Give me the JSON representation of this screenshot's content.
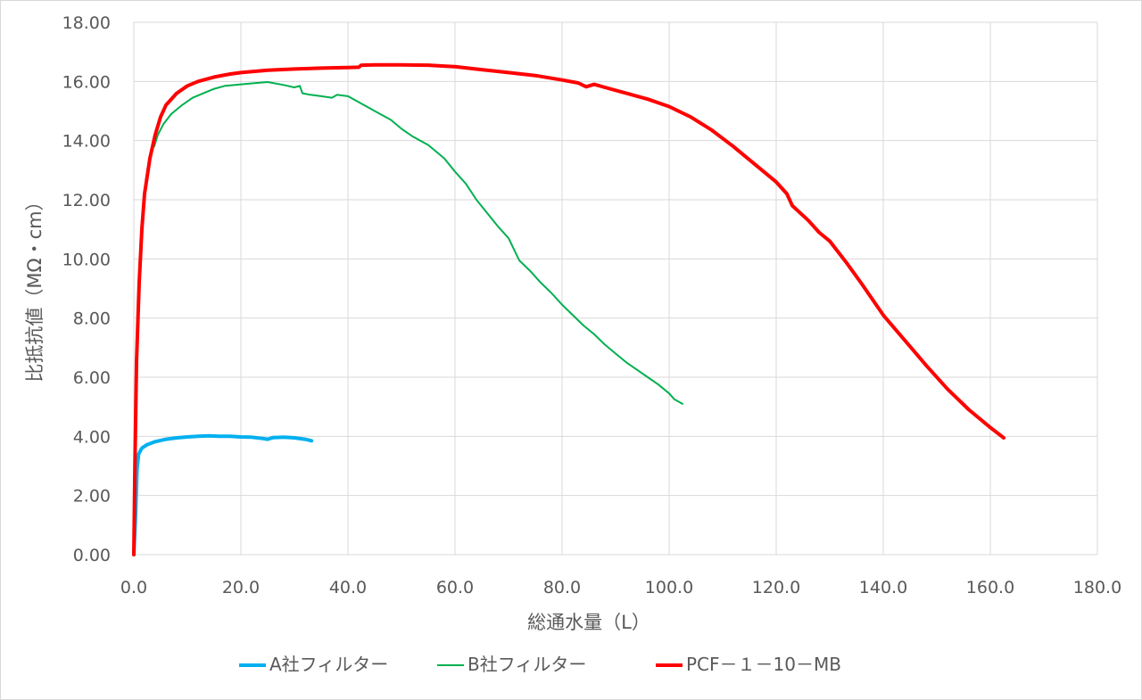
{
  "chart_data": {
    "type": "line",
    "title": "",
    "xlabel": "総通水量（L）",
    "ylabel": "比抵抗値（MΩ・cm）",
    "xlim": [
      0,
      180
    ],
    "ylim": [
      0,
      18
    ],
    "x_ticks": [
      "0.0",
      "20.0",
      "40.0",
      "60.0",
      "80.0",
      "100.0",
      "120.0",
      "140.0",
      "160.0",
      "180.0"
    ],
    "y_ticks": [
      "0.00",
      "2.00",
      "4.00",
      "6.00",
      "8.00",
      "10.00",
      "12.00",
      "14.00",
      "16.00",
      "18.00"
    ],
    "grid": true,
    "legend_position": "bottom",
    "series": [
      {
        "name": "A社フィルター",
        "color": "#00b0f0",
        "width": 4,
        "points": [
          [
            0,
            0
          ],
          [
            0.3,
            1.2
          ],
          [
            0.6,
            2.9
          ],
          [
            0.9,
            3.4
          ],
          [
            1.5,
            3.6
          ],
          [
            2.5,
            3.72
          ],
          [
            4,
            3.82
          ],
          [
            6,
            3.9
          ],
          [
            8,
            3.95
          ],
          [
            10,
            3.98
          ],
          [
            12,
            4.0
          ],
          [
            14,
            4.02
          ],
          [
            16,
            4.0
          ],
          [
            18,
            4.0
          ],
          [
            20,
            3.98
          ],
          [
            22,
            3.97
          ],
          [
            24,
            3.93
          ],
          [
            25,
            3.9
          ],
          [
            26,
            3.96
          ],
          [
            28,
            3.97
          ],
          [
            30,
            3.95
          ],
          [
            32,
            3.9
          ],
          [
            33.2,
            3.85
          ]
        ]
      },
      {
        "name": "B社フィルター",
        "color": "#00b050",
        "width": 2,
        "points": [
          [
            3.8,
            13.8
          ],
          [
            4.5,
            14.2
          ],
          [
            5.5,
            14.55
          ],
          [
            7,
            14.9
          ],
          [
            9,
            15.2
          ],
          [
            11,
            15.45
          ],
          [
            13,
            15.6
          ],
          [
            15,
            15.75
          ],
          [
            17,
            15.85
          ],
          [
            20,
            15.9
          ],
          [
            23,
            15.95
          ],
          [
            25,
            15.98
          ],
          [
            28,
            15.88
          ],
          [
            30,
            15.8
          ],
          [
            31,
            15.85
          ],
          [
            31.5,
            15.6
          ],
          [
            33,
            15.55
          ],
          [
            35,
            15.5
          ],
          [
            37,
            15.45
          ],
          [
            38,
            15.55
          ],
          [
            40,
            15.5
          ],
          [
            42,
            15.3
          ],
          [
            45,
            15.0
          ],
          [
            48,
            14.7
          ],
          [
            50,
            14.4
          ],
          [
            52,
            14.15
          ],
          [
            55,
            13.85
          ],
          [
            58,
            13.4
          ],
          [
            60,
            12.95
          ],
          [
            62,
            12.55
          ],
          [
            64,
            12.0
          ],
          [
            66,
            11.55
          ],
          [
            68,
            11.1
          ],
          [
            70,
            10.7
          ],
          [
            72,
            9.95
          ],
          [
            74,
            9.6
          ],
          [
            76,
            9.2
          ],
          [
            78,
            8.85
          ],
          [
            80,
            8.45
          ],
          [
            82,
            8.1
          ],
          [
            84,
            7.75
          ],
          [
            86,
            7.45
          ],
          [
            88,
            7.1
          ],
          [
            90,
            6.8
          ],
          [
            92,
            6.5
          ],
          [
            94,
            6.25
          ],
          [
            96,
            6.0
          ],
          [
            98,
            5.75
          ],
          [
            100,
            5.45
          ],
          [
            101,
            5.25
          ],
          [
            102.5,
            5.1
          ]
        ]
      },
      {
        "name": "PCF－１－10－MB",
        "color": "#ff0000",
        "width": 4,
        "points": [
          [
            0,
            0
          ],
          [
            0.2,
            3.0
          ],
          [
            0.5,
            6.5
          ],
          [
            1,
            9.2
          ],
          [
            1.5,
            11.0
          ],
          [
            2,
            12.2
          ],
          [
            3,
            13.4
          ],
          [
            4,
            14.2
          ],
          [
            5,
            14.8
          ],
          [
            6,
            15.2
          ],
          [
            8,
            15.6
          ],
          [
            10,
            15.85
          ],
          [
            12,
            16.0
          ],
          [
            15,
            16.15
          ],
          [
            18,
            16.25
          ],
          [
            20,
            16.3
          ],
          [
            25,
            16.38
          ],
          [
            30,
            16.42
          ],
          [
            35,
            16.45
          ],
          [
            40,
            16.47
          ],
          [
            42,
            16.48
          ],
          [
            42.5,
            16.55
          ],
          [
            45,
            16.56
          ],
          [
            50,
            16.56
          ],
          [
            55,
            16.55
          ],
          [
            60,
            16.5
          ],
          [
            65,
            16.4
          ],
          [
            70,
            16.3
          ],
          [
            75,
            16.2
          ],
          [
            80,
            16.05
          ],
          [
            83,
            15.95
          ],
          [
            84.5,
            15.82
          ],
          [
            86,
            15.9
          ],
          [
            88,
            15.8
          ],
          [
            92,
            15.6
          ],
          [
            96,
            15.4
          ],
          [
            100,
            15.15
          ],
          [
            104,
            14.8
          ],
          [
            108,
            14.35
          ],
          [
            112,
            13.8
          ],
          [
            116,
            13.2
          ],
          [
            120,
            12.6
          ],
          [
            122,
            12.2
          ],
          [
            123,
            11.8
          ],
          [
            126,
            11.3
          ],
          [
            128,
            10.9
          ],
          [
            130,
            10.6
          ],
          [
            133,
            9.9
          ],
          [
            136,
            9.15
          ],
          [
            140,
            8.1
          ],
          [
            144,
            7.25
          ],
          [
            148,
            6.4
          ],
          [
            152,
            5.6
          ],
          [
            156,
            4.9
          ],
          [
            160,
            4.3
          ],
          [
            162.5,
            3.95
          ]
        ]
      }
    ]
  }
}
